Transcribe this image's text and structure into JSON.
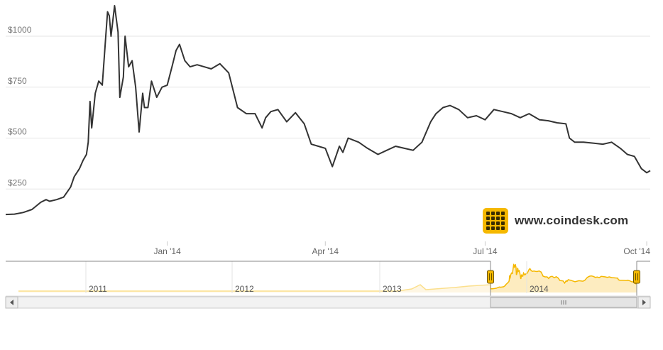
{
  "brand": {
    "text": "www.coindesk.com",
    "logo_icon": "coindesk-logo-icon",
    "accent": "#f5b800"
  },
  "chart_data": {
    "type": "line",
    "title": "",
    "xlabel": "",
    "ylabel": "",
    "ylim": [
      0,
      1150
    ],
    "xlim": [
      "2013-10-01",
      "2014-10-03"
    ],
    "yticks": [
      "$250",
      "$500",
      "$750",
      "$1000"
    ],
    "ytick_values": [
      250,
      500,
      750,
      1000
    ],
    "xticks": [
      "Jan '14",
      "Apr '14",
      "Jul '14",
      "Oct '14"
    ],
    "xtick_dates": [
      "2014-01-01",
      "2014-04-01",
      "2014-07-01",
      "2014-10-01"
    ],
    "grid": true,
    "line_color": "#333333",
    "series": [
      {
        "x": [
          "2013-10-01",
          "2013-10-06",
          "2013-10-11",
          "2013-10-16",
          "2013-10-21",
          "2013-10-24",
          "2013-10-26",
          "2013-10-30",
          "2013-11-03",
          "2013-11-07",
          "2013-11-09",
          "2013-11-12",
          "2013-11-14",
          "2013-11-16",
          "2013-11-17",
          "2013-11-18",
          "2013-11-19",
          "2013-11-21",
          "2013-11-23",
          "2013-11-25",
          "2013-11-27",
          "2013-11-28",
          "2013-11-29",
          "2013-11-30",
          "2013-12-02",
          "2013-12-04",
          "2013-12-05",
          "2013-12-07",
          "2013-12-08",
          "2013-12-10",
          "2013-12-12",
          "2013-12-14",
          "2013-12-16",
          "2013-12-18",
          "2013-12-19",
          "2013-12-21",
          "2013-12-23",
          "2013-12-26",
          "2013-12-29",
          "2014-01-01",
          "2014-01-04",
          "2014-01-06",
          "2014-01-08",
          "2014-01-11",
          "2014-01-14",
          "2014-01-18",
          "2014-01-22",
          "2014-01-26",
          "2014-01-31",
          "2014-02-05",
          "2014-02-10",
          "2014-02-15",
          "2014-02-20",
          "2014-02-24",
          "2014-02-26",
          "2014-03-01",
          "2014-03-05",
          "2014-03-10",
          "2014-03-15",
          "2014-03-20",
          "2014-03-24",
          "2014-03-28",
          "2014-04-01",
          "2014-04-05",
          "2014-04-09",
          "2014-04-11",
          "2014-04-14",
          "2014-04-17",
          "2014-04-20",
          "2014-04-25",
          "2014-05-01",
          "2014-05-06",
          "2014-05-11",
          "2014-05-16",
          "2014-05-21",
          "2014-05-26",
          "2014-05-31",
          "2014-06-03",
          "2014-06-07",
          "2014-06-11",
          "2014-06-16",
          "2014-06-21",
          "2014-06-26",
          "2014-07-01",
          "2014-07-06",
          "2014-07-11",
          "2014-07-16",
          "2014-07-21",
          "2014-07-26",
          "2014-08-01",
          "2014-08-06",
          "2014-08-11",
          "2014-08-16",
          "2014-08-18",
          "2014-08-21",
          "2014-08-26",
          "2014-09-01",
          "2014-09-06",
          "2014-09-11",
          "2014-09-16",
          "2014-09-20",
          "2014-09-24",
          "2014-09-28",
          "2014-10-01",
          "2014-10-03"
        ],
        "values": [
          125,
          127,
          135,
          150,
          185,
          198,
          190,
          198,
          210,
          260,
          310,
          350,
          390,
          420,
          480,
          680,
          550,
          720,
          780,
          760,
          1000,
          1120,
          1100,
          1000,
          1150,
          1020,
          700,
          800,
          1000,
          850,
          880,
          750,
          530,
          720,
          650,
          650,
          780,
          700,
          750,
          760,
          860,
          930,
          960,
          880,
          850,
          860,
          850,
          840,
          865,
          820,
          650,
          620,
          620,
          550,
          600,
          630,
          640,
          580,
          625,
          570,
          470,
          460,
          450,
          360,
          460,
          430,
          500,
          490,
          480,
          450,
          420,
          440,
          460,
          450,
          440,
          480,
          580,
          620,
          650,
          660,
          640,
          600,
          610,
          590,
          640,
          630,
          620,
          600,
          620,
          590,
          585,
          575,
          570,
          500,
          480,
          480,
          475,
          470,
          480,
          450,
          420,
          410,
          350,
          330,
          340
        ]
      }
    ],
    "navigator": {
      "labels": [
        "2011",
        "2012",
        "2013",
        "2014"
      ],
      "selection_start": "Jul '14",
      "selection_end": "Oct '14",
      "fill_color": "#fdecc0",
      "line_color": "#f5b800"
    }
  }
}
